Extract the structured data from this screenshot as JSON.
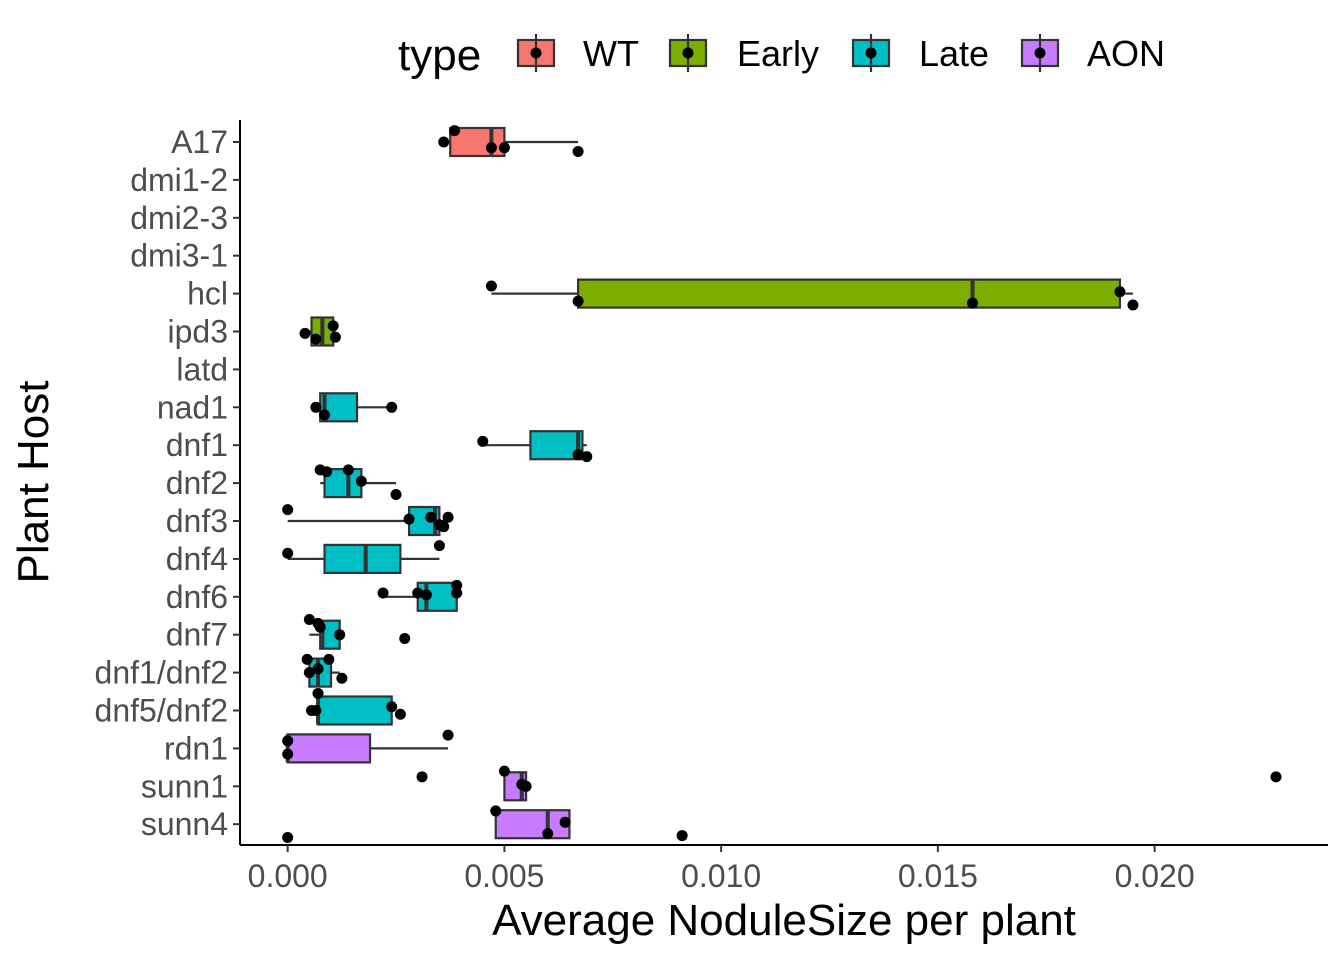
{
  "chart_data": {
    "type": "boxplot",
    "orientation": "horizontal",
    "xlabel": "Average NoduleSize per plant",
    "ylabel": "Plant Host",
    "xlim": [
      -0.0011,
      0.024
    ],
    "x_ticks": [
      0.0,
      0.005,
      0.01,
      0.015,
      0.02
    ],
    "x_tick_labels": [
      "0.000",
      "0.005",
      "0.010",
      "0.015",
      "0.020"
    ],
    "grid": false,
    "legend": {
      "title": "type",
      "position": "top",
      "entries": [
        {
          "name": "WT",
          "color": "#F8766D"
        },
        {
          "name": "Early",
          "color": "#7CAE00"
        },
        {
          "name": "Late",
          "color": "#00BFC4"
        },
        {
          "name": "AON",
          "color": "#C77CFF"
        }
      ]
    },
    "categories": [
      "A17",
      "dmi1-2",
      "dmi2-3",
      "dmi3-1",
      "hcl",
      "ipd3",
      "latd",
      "nad1",
      "dnf1",
      "dnf2",
      "dnf3",
      "dnf4",
      "dnf6",
      "dnf7",
      "dnf1/dnf2",
      "dnf5/dnf2",
      "rdn1",
      "sunn1",
      "sunn4"
    ],
    "boxes": [
      {
        "category": "A17",
        "type": "WT",
        "min": 0.0036,
        "q1": 0.00375,
        "median": 0.0047,
        "q3": 0.005,
        "max": 0.0067,
        "points": [
          [
            0.00385,
            -0.3
          ],
          [
            0.0036,
            0.0
          ],
          [
            0.0047,
            0.15
          ],
          [
            0.005,
            0.15
          ],
          [
            0.0067,
            0.25
          ]
        ]
      },
      {
        "category": "hcl",
        "type": "Early",
        "min": 0.0047,
        "q1": 0.0067,
        "median": 0.0158,
        "q3": 0.0192,
        "max": 0.0195,
        "points": [
          [
            0.0047,
            -0.2
          ],
          [
            0.0067,
            0.2
          ],
          [
            0.0158,
            0.25
          ],
          [
            0.0192,
            -0.05
          ],
          [
            0.0195,
            0.3
          ]
        ]
      },
      {
        "category": "ipd3",
        "type": "Early",
        "min": 0.0004,
        "q1": 0.00055,
        "median": 0.0008,
        "q3": 0.00105,
        "max": 0.0011,
        "points": [
          [
            0.0004,
            0.05
          ],
          [
            0.00065,
            0.2
          ],
          [
            0.00105,
            -0.15
          ],
          [
            0.0011,
            0.15
          ]
        ]
      },
      {
        "category": "nad1",
        "type": "Late",
        "min": 0.00065,
        "q1": 0.00075,
        "median": 0.00085,
        "q3": 0.0016,
        "max": 0.0024,
        "points": [
          [
            0.00065,
            0.0
          ],
          [
            0.00085,
            0.2
          ],
          [
            0.0024,
            0.0
          ]
        ]
      },
      {
        "category": "dnf1",
        "type": "Late",
        "min": 0.0045,
        "q1": 0.0056,
        "median": 0.0067,
        "q3": 0.0068,
        "max": 0.0069,
        "points": [
          [
            0.0045,
            -0.1
          ],
          [
            0.0067,
            0.25
          ],
          [
            0.0069,
            0.3
          ]
        ]
      },
      {
        "category": "dnf2",
        "type": "Late",
        "min": 0.00075,
        "q1": 0.00085,
        "median": 0.0014,
        "q3": 0.0017,
        "max": 0.0025,
        "points": [
          [
            0.00075,
            -0.35
          ],
          [
            0.0009,
            -0.3
          ],
          [
            0.0014,
            -0.35
          ],
          [
            0.0017,
            -0.05
          ],
          [
            0.0025,
            0.3
          ]
        ]
      },
      {
        "category": "dnf3",
        "type": "Late",
        "min": 0.0,
        "q1": 0.0028,
        "median": 0.0034,
        "q3": 0.0035,
        "max": 0.0037,
        "points": [
          [
            0.0,
            -0.3
          ],
          [
            0.0028,
            -0.05
          ],
          [
            0.0033,
            -0.1
          ],
          [
            0.0035,
            0.1
          ],
          [
            0.0036,
            0.15
          ],
          [
            0.0037,
            -0.1
          ]
        ]
      },
      {
        "category": "dnf4",
        "type": "Late",
        "min": 0.0,
        "q1": 0.00085,
        "median": 0.0018,
        "q3": 0.0026,
        "max": 0.0035,
        "points": [
          [
            0.0,
            -0.15
          ],
          [
            0.0035,
            -0.35
          ]
        ]
      },
      {
        "category": "dnf6",
        "type": "Late",
        "min": 0.0022,
        "q1": 0.003,
        "median": 0.0032,
        "q3": 0.0039,
        "max": 0.0039,
        "points": [
          [
            0.0022,
            -0.1
          ],
          [
            0.003,
            -0.1
          ],
          [
            0.0032,
            -0.05
          ],
          [
            0.0039,
            -0.3
          ],
          [
            0.0039,
            -0.1
          ]
        ]
      },
      {
        "category": "dnf7",
        "type": "Late",
        "min": 0.0005,
        "q1": 0.00075,
        "median": 0.0008,
        "q3": 0.0012,
        "max": 0.0012,
        "points": [
          [
            0.0005,
            -0.4
          ],
          [
            0.0007,
            -0.3
          ],
          [
            0.00075,
            -0.2
          ],
          [
            0.0012,
            0.0
          ],
          [
            0.0027,
            0.1
          ]
        ]
      },
      {
        "category": "dnf1/dnf2",
        "type": "Late",
        "min": 0.0004,
        "q1": 0.0005,
        "median": 0.0007,
        "q3": 0.001,
        "max": 0.0012,
        "points": [
          [
            0.00045,
            -0.35
          ],
          [
            0.0005,
            0.0
          ],
          [
            0.0007,
            -0.1
          ],
          [
            0.00095,
            -0.35
          ],
          [
            0.00125,
            0.15
          ]
        ]
      },
      {
        "category": "dnf5/dnf2",
        "type": "Late",
        "min": 0.0006,
        "q1": 0.0007,
        "median": 0.0007,
        "q3": 0.0024,
        "max": 0.0024,
        "points": [
          [
            0.00055,
            0.0
          ],
          [
            0.00065,
            0.0
          ],
          [
            0.0007,
            -0.45
          ],
          [
            0.0024,
            -0.1
          ],
          [
            0.0026,
            0.1
          ]
        ]
      },
      {
        "category": "rdn1",
        "type": "AON",
        "min": 0.0,
        "q1": 0.0,
        "median": 0.0,
        "q3": 0.0019,
        "max": 0.0037,
        "points": [
          [
            0.0,
            -0.2
          ],
          [
            0.0,
            0.15
          ],
          [
            0.0037,
            -0.35
          ]
        ]
      },
      {
        "category": "sunn1",
        "type": "AON",
        "min": 0.005,
        "q1": 0.005,
        "median": 0.0054,
        "q3": 0.0055,
        "max": 0.0055,
        "points": [
          [
            0.0031,
            -0.25
          ],
          [
            0.005,
            -0.4
          ],
          [
            0.0054,
            -0.05
          ],
          [
            0.0055,
            0.0
          ],
          [
            0.0228,
            -0.25
          ]
        ]
      },
      {
        "category": "sunn4",
        "type": "AON",
        "min": 0.0048,
        "q1": 0.0048,
        "median": 0.006,
        "q3": 0.0065,
        "max": 0.0065,
        "points": [
          [
            0.0,
            0.35
          ],
          [
            0.0048,
            -0.35
          ],
          [
            0.006,
            0.25
          ],
          [
            0.0064,
            -0.05
          ],
          [
            0.0091,
            0.3
          ]
        ]
      }
    ]
  }
}
